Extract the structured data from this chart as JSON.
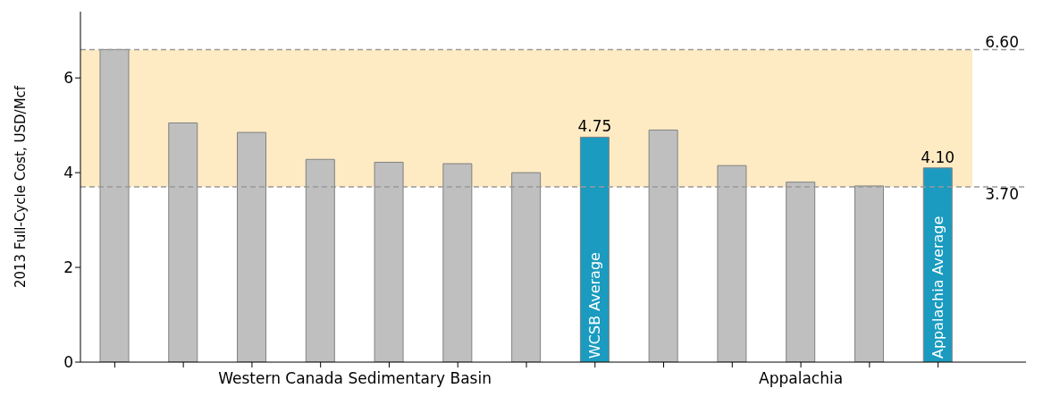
{
  "chart_data": {
    "type": "bar",
    "ylabel": "2013 Full-Cycle Cost, USD/Mcf",
    "categories": [
      null,
      null,
      null,
      null,
      null,
      null,
      null,
      "WCSB Average",
      null,
      null,
      null,
      null,
      "Appalachia Average"
    ],
    "values": [
      6.6,
      5.05,
      4.85,
      4.28,
      4.22,
      4.19,
      4.0,
      4.75,
      4.9,
      4.15,
      3.8,
      3.72,
      4.1
    ],
    "colors": [
      "#bfbfbf",
      "#bfbfbf",
      "#bfbfbf",
      "#bfbfbf",
      "#bfbfbf",
      "#bfbfbf",
      "#bfbfbf",
      "#1a9bbf",
      "#bfbfbf",
      "#bfbfbf",
      "#bfbfbf",
      "#bfbfbf",
      "#1a9bbf"
    ],
    "value_labels": [
      null,
      null,
      null,
      null,
      null,
      null,
      null,
      "4.75",
      null,
      null,
      null,
      null,
      "4.10"
    ],
    "ylim": [
      0,
      7.4
    ],
    "yticks": [
      0,
      2,
      4,
      6
    ],
    "bands": [
      {
        "axis": "y",
        "from": 3.7,
        "to": 6.6,
        "color": "#fdd27a"
      }
    ],
    "ref_lines": [
      {
        "axis": "y",
        "value": 6.6,
        "label": "6.60",
        "color": "#999999",
        "line_style": "dashed"
      },
      {
        "axis": "y",
        "value": 3.7,
        "label": "3.70",
        "color": "#999999",
        "line_style": "dashed"
      }
    ],
    "annotations": [
      "Western Canada Sedimentary Basin",
      "Appalachia"
    ]
  }
}
